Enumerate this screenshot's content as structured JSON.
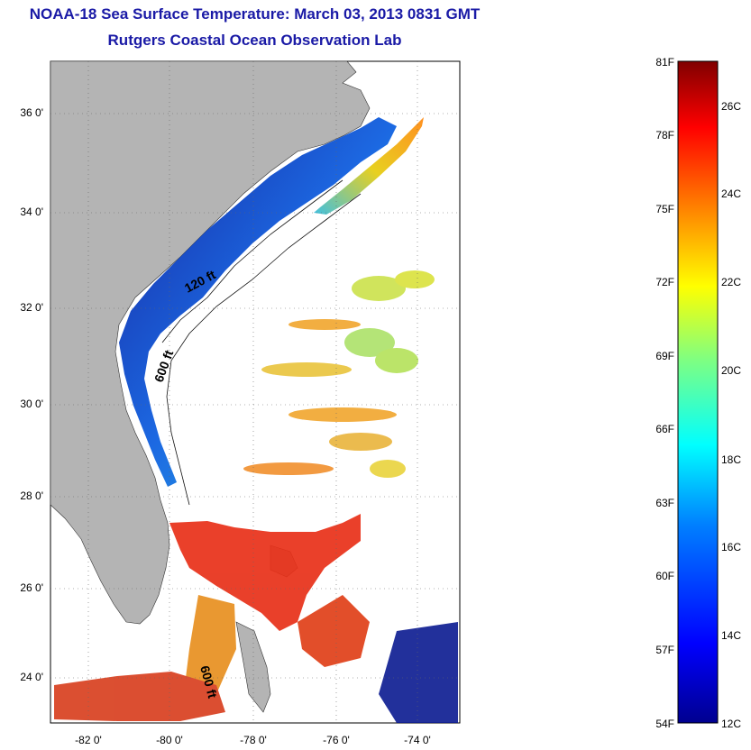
{
  "title": "NOAA-18 Sea Surface Temperature:  March 03, 2013 0831 GMT",
  "subtitle": "Rutgers Coastal Ocean Observation Lab",
  "map": {
    "lat_ticks": [
      "36 0'",
      "34 0'",
      "32 0'",
      "30 0'",
      "28 0'",
      "26 0'",
      "24 0'"
    ],
    "lon_ticks": [
      "-82 0'",
      "-80 0'",
      "-78 0'",
      "-76 0'",
      "-74 0'"
    ],
    "contour_labels": [
      "120 ft",
      "600 ft",
      "600 ft"
    ],
    "colors": {
      "land": "#b4b4b4",
      "water_nodata": "#ffffff",
      "cold": "#0a1aa0",
      "warm": "#e8321a"
    }
  },
  "colorbar": {
    "fahrenheit_labels": [
      "81F",
      "78F",
      "75F",
      "72F",
      "69F",
      "66F",
      "63F",
      "60F",
      "57F",
      "54F"
    ],
    "celsius_labels": [
      "26C",
      "24C",
      "22C",
      "20C",
      "18C",
      "16C",
      "14C",
      "12C"
    ],
    "range_f": [
      54,
      81
    ],
    "range_c": [
      12,
      27.2
    ],
    "palette": [
      "#00008f",
      "#0000ff",
      "#0080ff",
      "#00ffff",
      "#80ff80",
      "#ffff00",
      "#ff8000",
      "#ff0000",
      "#800000"
    ]
  }
}
